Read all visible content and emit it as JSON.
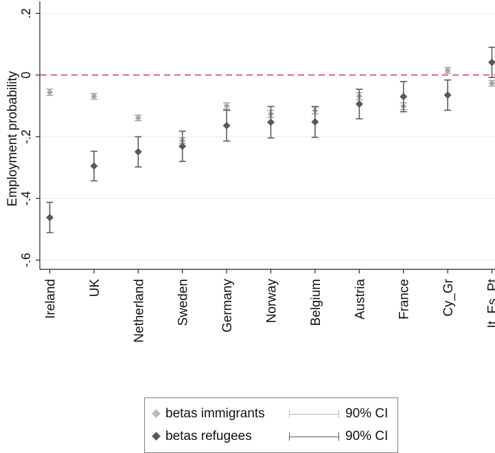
{
  "chart_data": {
    "type": "scatter",
    "ylabel": "Employment probability",
    "ylim": [
      -0.63,
      0.22
    ],
    "yticks": [
      0.2,
      0,
      -0.2,
      -0.4,
      -0.6
    ],
    "ytick_labels": [
      ".2",
      "0",
      "-.2",
      "-.4",
      "-.6"
    ],
    "reference_line": {
      "y": 0,
      "color": "#d9304c",
      "style": "dashed"
    },
    "categories": [
      "Ireland",
      "UK",
      "Netherland",
      "Sweden",
      "Germany",
      "Norway",
      "Belgium",
      "Austria",
      "France",
      "Cy_Gr",
      "It_Es_Pt"
    ],
    "series": [
      {
        "name": "betas immigrants",
        "color": "#a6a6a6",
        "values": [
          -0.056,
          -0.069,
          -0.139,
          -0.213,
          -0.1,
          -0.126,
          -0.115,
          -0.069,
          -0.101,
          0.015,
          -0.027
        ],
        "ci_low": [
          -0.066,
          -0.078,
          -0.148,
          -0.222,
          -0.11,
          -0.137,
          -0.126,
          -0.08,
          -0.112,
          0.006,
          -0.036
        ],
        "ci_high": [
          -0.046,
          -0.06,
          -0.13,
          -0.204,
          -0.09,
          -0.115,
          -0.104,
          -0.058,
          -0.09,
          0.024,
          -0.018
        ]
      },
      {
        "name": "betas refugees",
        "color": "#595959",
        "values": [
          -0.462,
          -0.295,
          -0.249,
          -0.231,
          -0.164,
          -0.153,
          -0.152,
          -0.094,
          -0.07,
          -0.065,
          0.041
        ],
        "ci_low": [
          -0.511,
          -0.343,
          -0.298,
          -0.28,
          -0.214,
          -0.204,
          -0.202,
          -0.142,
          -0.119,
          -0.114,
          -0.008
        ],
        "ci_high": [
          -0.413,
          -0.247,
          -0.2,
          -0.182,
          -0.114,
          -0.102,
          -0.102,
          -0.046,
          -0.021,
          -0.016,
          0.09
        ]
      }
    ],
    "grid": true,
    "legend": {
      "placement": "bottom",
      "rows": [
        {
          "label": "betas immigrants",
          "ci_label": "90% CI",
          "color": "#b8b8b8"
        },
        {
          "label": "betas refugees",
          "ci_label": "90% CI",
          "color": "#5a5a5a"
        }
      ]
    }
  }
}
